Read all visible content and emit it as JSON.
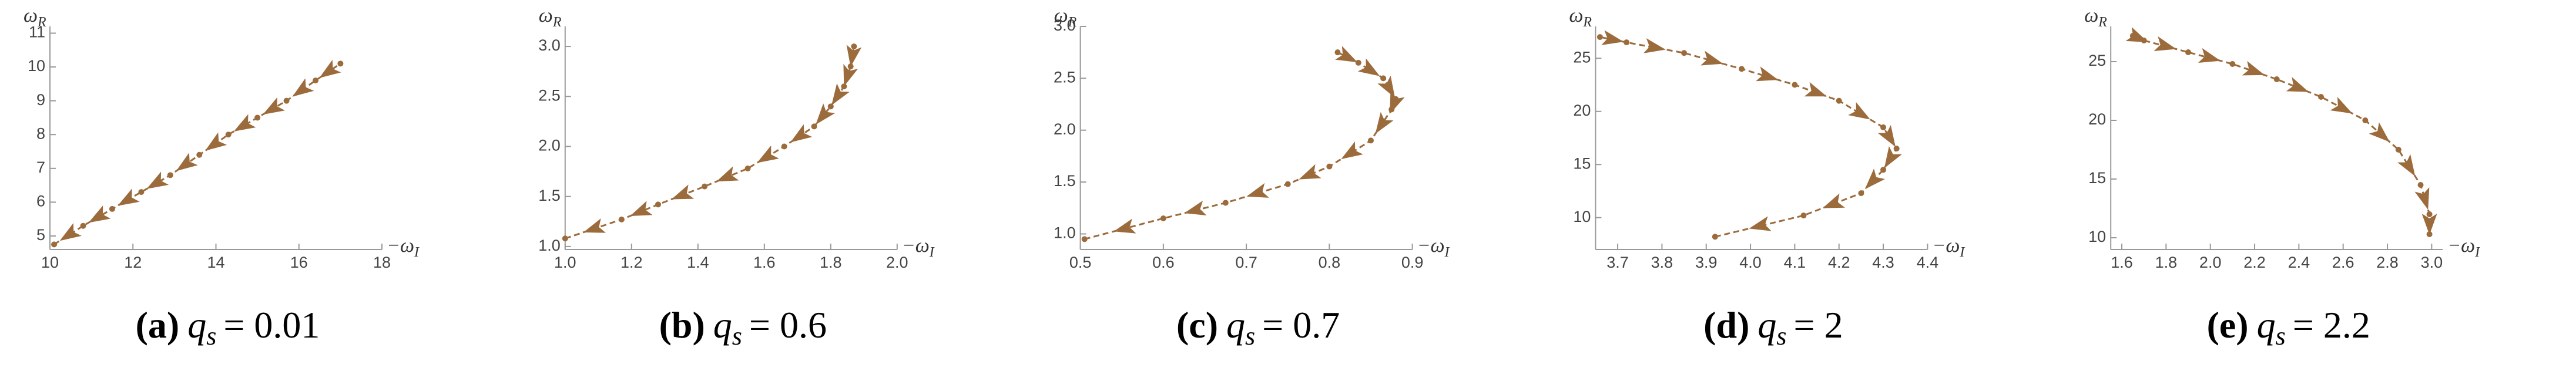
{
  "chart_data": [
    {
      "type": "line",
      "caption_label": "(a)",
      "caption_var": "q",
      "caption_sub": "s",
      "caption_value": "= 0.01",
      "xlabel": "−ω",
      "xlabel_sub": "I",
      "ylabel": "ω",
      "ylabel_sub": "R",
      "color": "#9c6b3c",
      "xlim": [
        10,
        18
      ],
      "ylim": [
        4.6,
        11.2
      ],
      "xticks": [
        10,
        12,
        14,
        16,
        18
      ],
      "yticks": [
        5,
        6,
        7,
        8,
        9,
        10,
        11
      ],
      "x": [
        10.1,
        10.8,
        11.5,
        12.2,
        12.9,
        13.6,
        14.3,
        15.0,
        15.7,
        16.4,
        17.0
      ],
      "series": [
        {
          "values": [
            4.75,
            5.3,
            5.8,
            6.3,
            6.8,
            7.4,
            8.0,
            8.5,
            9.0,
            9.6,
            10.1
          ]
        }
      ]
    },
    {
      "type": "line",
      "caption_label": "(b)",
      "caption_var": "q",
      "caption_sub": "s",
      "caption_value": "= 0.6",
      "xlabel": "−ω",
      "xlabel_sub": "I",
      "ylabel": "ω",
      "ylabel_sub": "R",
      "color": "#9c6b3c",
      "xlim": [
        1.0,
        2.0
      ],
      "ylim": [
        0.97,
        3.2
      ],
      "xticks": [
        {
          "value": 1,
          "label": "1.0"
        },
        1.2,
        1.4,
        1.6,
        1.8,
        {
          "value": 2,
          "label": "2.0"
        }
      ],
      "yticks": [
        {
          "value": 1,
          "label": "1.0"
        },
        1.5,
        {
          "value": 2,
          "label": "2.0"
        },
        2.5,
        {
          "value": 3,
          "label": "3.0"
        }
      ],
      "x": [
        1.0,
        1.17,
        1.28,
        1.42,
        1.55,
        1.66,
        1.75,
        1.8,
        1.84,
        1.86,
        1.87
      ],
      "series": [
        {
          "values": [
            1.08,
            1.27,
            1.42,
            1.6,
            1.78,
            2.0,
            2.2,
            2.4,
            2.6,
            2.8,
            3.0
          ]
        }
      ]
    },
    {
      "type": "line",
      "caption_label": "(c)",
      "caption_var": "q",
      "caption_sub": "s",
      "caption_value": "= 0.7",
      "xlabel": "−ω",
      "xlabel_sub": "I",
      "ylabel": "ω",
      "ylabel_sub": "R",
      "color": "#9c6b3c",
      "xlim": [
        0.5,
        0.9
      ],
      "ylim": [
        0.85,
        3.0
      ],
      "xticks": [
        0.5,
        0.6,
        0.7,
        0.8,
        0.9
      ],
      "yticks": [
        {
          "value": 1,
          "label": "1.0"
        },
        1.5,
        {
          "value": 2,
          "label": "2.0"
        },
        2.5,
        {
          "value": 3,
          "label": "3.0"
        }
      ],
      "x": [
        0.505,
        0.6,
        0.675,
        0.75,
        0.8,
        0.85,
        0.875,
        0.88,
        0.865,
        0.835,
        0.81
      ],
      "series": [
        {
          "values": [
            0.95,
            1.15,
            1.3,
            1.48,
            1.65,
            1.9,
            2.2,
            2.3,
            2.5,
            2.65,
            2.75
          ]
        }
      ]
    },
    {
      "type": "line",
      "caption_label": "(d)",
      "caption_var": "q",
      "caption_sub": "s",
      "caption_value": "= 2",
      "xlabel": "−ω",
      "xlabel_sub": "I",
      "ylabel": "ω",
      "ylabel_sub": "R",
      "color": "#9c6b3c",
      "xlim": [
        3.65,
        4.4
      ],
      "ylim": [
        7,
        28
      ],
      "xticks": [
        3.7,
        3.8,
        3.9,
        {
          "value": 4,
          "label": "4.0"
        },
        4.1,
        4.2,
        4.3,
        4.4
      ],
      "yticks": [
        10,
        15,
        20,
        25
      ],
      "x": [
        3.92,
        4.12,
        4.25,
        4.3,
        4.33,
        4.3,
        4.2,
        4.1,
        3.98,
        3.85,
        3.72,
        3.66
      ],
      "series": [
        {
          "values": [
            8.2,
            10.2,
            12.3,
            14.5,
            16.5,
            18.5,
            21,
            22.5,
            24,
            25.5,
            26.5,
            27
          ]
        }
      ]
    },
    {
      "type": "line",
      "caption_label": "(e)",
      "caption_var": "q",
      "caption_sub": "s",
      "caption_value": "= 2.2",
      "xlabel": "−ω",
      "xlabel_sub": "I",
      "ylabel": "ω",
      "ylabel_sub": "R",
      "color": "#9c6b3c",
      "xlim": [
        1.55,
        3.05
      ],
      "ylim": [
        9,
        28
      ],
      "xticks": [
        1.6,
        1.8,
        {
          "value": 2,
          "label": "2.0"
        },
        2.2,
        2.4,
        2.6,
        2.8,
        {
          "value": 3,
          "label": "3.0"
        }
      ],
      "yticks": [
        10,
        15,
        20,
        25
      ],
      "x": [
        2.99,
        2.99,
        2.95,
        2.85,
        2.7,
        2.5,
        2.3,
        2.1,
        1.9,
        1.7,
        1.65
      ],
      "series": [
        {
          "values": [
            10.3,
            12,
            14.5,
            17.5,
            20,
            22,
            23.5,
            24.8,
            25.8,
            26.8,
            27.2
          ]
        }
      ]
    }
  ]
}
